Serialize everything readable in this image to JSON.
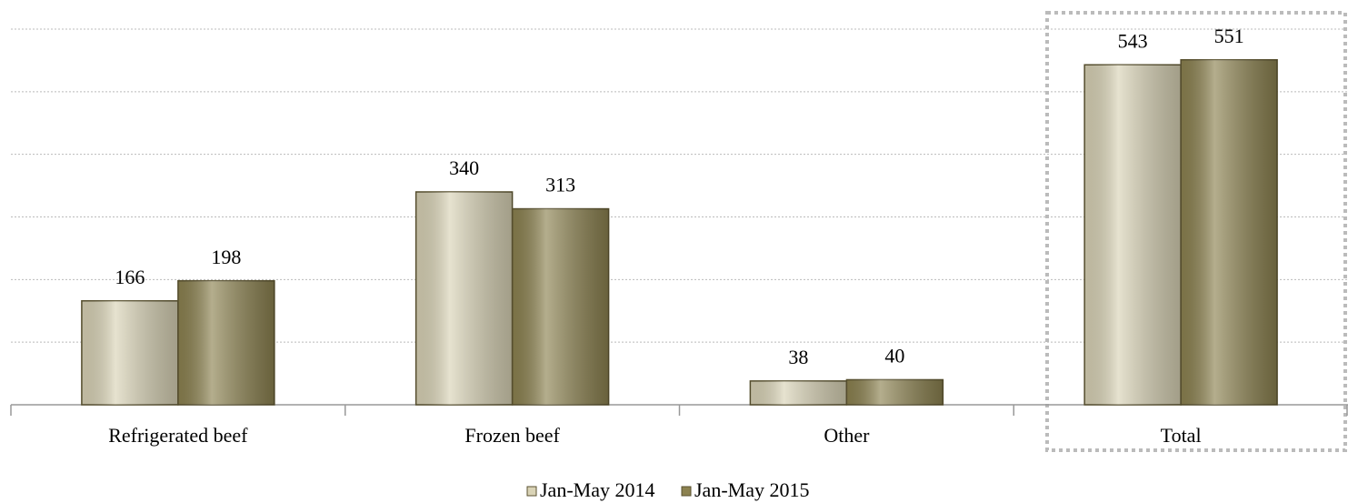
{
  "chart_data": {
    "type": "bar",
    "categories": [
      "Refrigerated beef",
      "Frozen beef",
      "Other",
      "Total"
    ],
    "series": [
      {
        "name": "Jan-May 2014",
        "color": "#d9d3b6",
        "values": [
          166,
          340,
          38,
          543
        ]
      },
      {
        "name": "Jan-May 2015",
        "color": "#8c8250",
        "values": [
          198,
          313,
          40,
          551
        ]
      }
    ],
    "ylim": [
      0,
      600
    ],
    "yticks": [
      0,
      100,
      200,
      300,
      400,
      500,
      600
    ],
    "grid": true,
    "legend": "bottom"
  }
}
